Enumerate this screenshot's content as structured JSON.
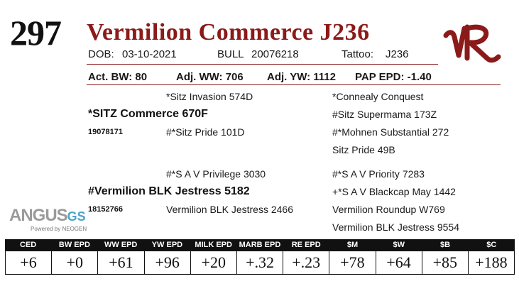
{
  "lot_number": "297",
  "animal_name": "Vermilion Commerce J236",
  "info": {
    "dob_label": "DOB:",
    "dob": "03-10-2021",
    "sex": "BULL",
    "reg": "20076218",
    "tattoo_label": "Tattoo:",
    "tattoo": "J236"
  },
  "stats": {
    "bw": "Act. BW: 80",
    "ww": "Adj. WW: 706",
    "yw": "Adj. YW: 1112",
    "pap": "PAP EPD: -1.40"
  },
  "pedigree": {
    "sire": "*SITZ Commerce 670F",
    "sire_reg": "19078171",
    "sire_sire": "*Sitz Invasion 574D",
    "sire_dam": "#*Sitz Pride 101D",
    "sss": "*Connealy Conquest",
    "ssd": "#Sitz Supermama 173Z",
    "sds": "#*Mohnen Substantial 272",
    "sdd": "Sitz Pride 49B",
    "dam": "#Vermilion BLK Jestress 5182",
    "dam_reg": "18152766",
    "dam_sire": "#*S A V Privilege 3030",
    "dam_dam": "Vermilion BLK Jestress 2466",
    "dss": "#*S A V Priority 7283",
    "dsd": "+*S A V Blackcap May 1442",
    "dds": "Vermilion Roundup W769",
    "ddd": "Vermilion BLK Jestress 9554"
  },
  "angus_logo": {
    "word": "ANGUS",
    "gs": "GS",
    "sub": "Powered by NEOGEN"
  },
  "brand_logo": "VR brand mark",
  "epd": {
    "headers": [
      "CED",
      "BW EPD",
      "WW EPD",
      "YW EPD",
      "MILK EPD",
      "MARB EPD",
      "RE EPD",
      "$M",
      "$W",
      "$B",
      "$C"
    ],
    "values": [
      "+6",
      "+0",
      "+61",
      "+96",
      "+20",
      "+.32",
      "+.23",
      "+78",
      "+64",
      "+85",
      "+188"
    ]
  },
  "colors": {
    "accent": "#8b1a1a",
    "angus_gray": "#9a9a9a",
    "angus_blue": "#4aa6c8"
  }
}
